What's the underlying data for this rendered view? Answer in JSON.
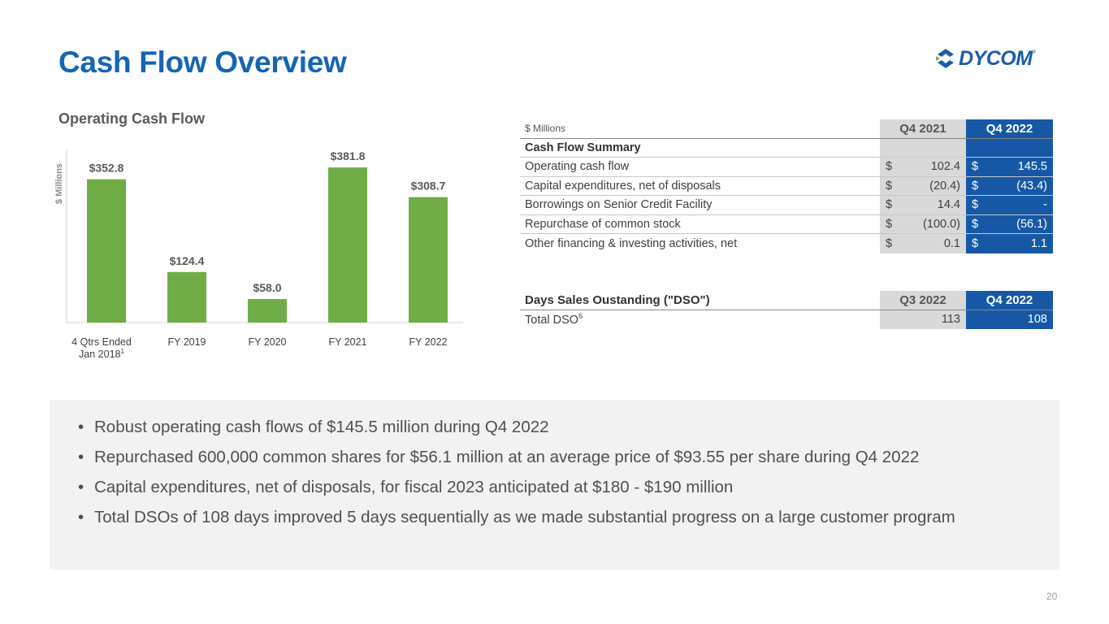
{
  "title": "Cash Flow Overview",
  "logo": {
    "text": "DYCOM",
    "icon": "dycom-diamond-logo-icon"
  },
  "chart_title": "Operating Cash Flow",
  "chart_data": {
    "type": "bar",
    "ylabel": "$ Millions",
    "categories": [
      "4 Qtrs Ended Jan 2018",
      "FY 2019",
      "FY 2020",
      "FY 2021",
      "FY 2022"
    ],
    "category_lines": [
      [
        "4 Qtrs Ended",
        "Jan 2018"
      ],
      [
        "FY 2019"
      ],
      [
        "FY 2020"
      ],
      [
        "FY 2021"
      ],
      [
        "FY 2022"
      ]
    ],
    "category_superscripts": [
      "1",
      "",
      "",
      "",
      ""
    ],
    "values": [
      352.8,
      124.4,
      58.0,
      381.8,
      308.7
    ],
    "data_labels": [
      "$352.8",
      "$124.4",
      "$58.0",
      "$381.8",
      "$308.7"
    ],
    "bar_color": "#70ad47",
    "ylim": [
      0,
      400
    ]
  },
  "cash_table": {
    "units": "$ Millions",
    "col1": "Q4 2021",
    "col2": "Q4 2022",
    "section": "Cash Flow Summary",
    "rows": [
      {
        "label": "Operating cash flow",
        "c1": "$",
        "v1": "102.4",
        "c2": "$",
        "v2": "145.5"
      },
      {
        "label": "Capital expenditures, net of disposals",
        "c1": "$",
        "v1": "(20.4)",
        "c2": "$",
        "v2": "(43.4)"
      },
      {
        "label": "Borrowings on Senior Credit Facility",
        "c1": "$",
        "v1": "14.4",
        "c2": "$",
        "v2": "-"
      },
      {
        "label": "Repurchase of common stock",
        "c1": "$",
        "v1": "(100.0)",
        "c2": "$",
        "v2": "(56.1)"
      },
      {
        "label": "Other financing & investing activities, net",
        "c1": "$",
        "v1": "0.1",
        "c2": "$",
        "v2": "1.1"
      }
    ]
  },
  "dso_table": {
    "title": "Days Sales Oustanding (\"DSO\")",
    "col1": "Q3 2022",
    "col2": "Q4 2022",
    "row_label": "Total DSO",
    "row_sup": "6",
    "v1": "113",
    "v2": "108"
  },
  "bullets": [
    "Robust operating cash flows of $145.5 million during Q4 2022",
    "Repurchased 600,000 common shares for $56.1 million at an average price of $93.55 per share during Q4 2022",
    "Capital expenditures, net of disposals, for fiscal 2023 anticipated at $180 - $190 million",
    "Total DSOs of 108 days improved 5 days sequentially as we made substantial progress on a large customer program"
  ],
  "page_number": "20"
}
